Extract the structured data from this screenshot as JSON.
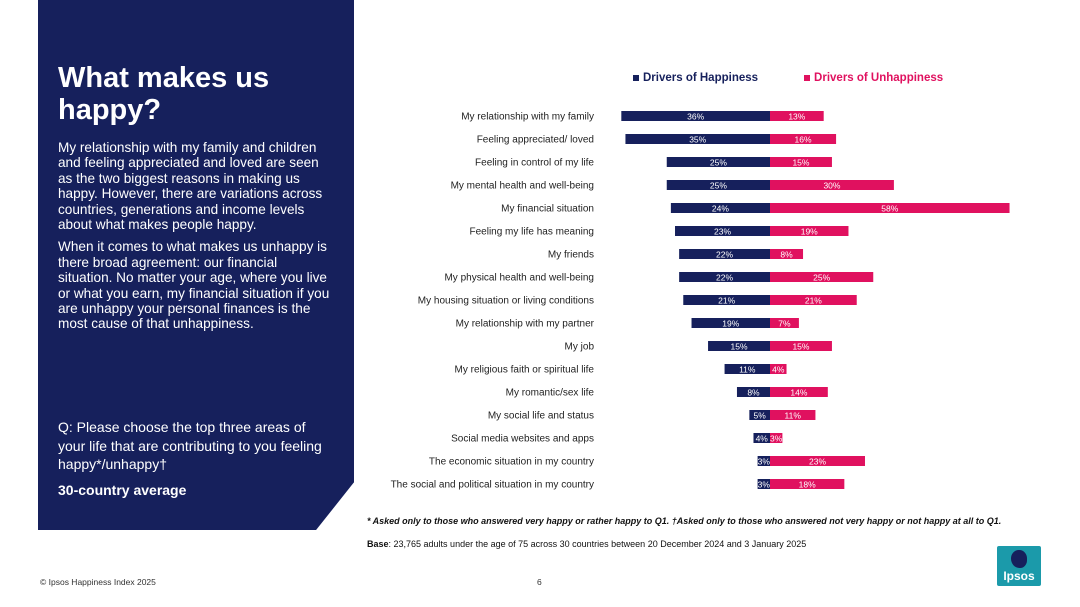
{
  "panel": {
    "title": "What makes us happy?",
    "paragraph1": "My relationship with my family and children and feeling appreciated and loved are seen as the two biggest reasons in making us happy. However, there are variations across countries, generations and income levels about what makes people happy.",
    "paragraph2": "When it comes to what makes us unhappy is there broad agreement: our financial situation. No matter your age, where you live or what you earn, my financial situation if you are unhappy your personal finances is the most cause of that unhappiness.",
    "question": "Q: Please choose the top three areas of your life that are contributing to you feeling happy*/unhappy†",
    "average_label": "30-country average"
  },
  "legend": {
    "happy": "Drivers of Happiness",
    "unhappy": "Drivers of Unhappiness"
  },
  "colors": {
    "happy": "#16205c",
    "unhappy": "#e0115f",
    "panel": "#16205c"
  },
  "chart_data": {
    "type": "bar",
    "orientation": "horizontal-diverging",
    "categories": [
      "My relationship with my family",
      "Feeling appreciated/ loved",
      "Feeling in control of my life",
      "My mental health and well-being",
      "My financial situation",
      "Feeling my life has meaning",
      "My friends",
      "My physical health and well-being",
      "My housing situation or living conditions",
      "My relationship with my partner",
      "My job",
      "My religious faith or spiritual life",
      "My romantic/sex life",
      "My social life and status",
      "Social media websites and apps",
      "The economic situation in my country",
      "The social and political situation in my country"
    ],
    "series": [
      {
        "name": "Drivers of Happiness",
        "values": [
          36,
          35,
          25,
          25,
          24,
          23,
          22,
          22,
          21,
          19,
          15,
          11,
          8,
          5,
          4,
          3,
          3
        ]
      },
      {
        "name": "Drivers of Unhappiness",
        "values": [
          13,
          16,
          15,
          30,
          58,
          19,
          8,
          25,
          21,
          7,
          15,
          4,
          14,
          11,
          3,
          23,
          18
        ]
      }
    ],
    "unit": "%"
  },
  "footnote": "* Asked only to those who answered very happy or rather happy to Q1. †Asked only to those who answered not very happy or not happy at all to Q1.",
  "base": {
    "label": "Base",
    "text": ": 23,765 adults under the age of 75 across 30 countries between  20 December 2024 and 3 January 2025"
  },
  "footer": {
    "copyright": "© Ipsos Happiness Index 2025",
    "page": "6",
    "logo_text": "Ipsos"
  }
}
